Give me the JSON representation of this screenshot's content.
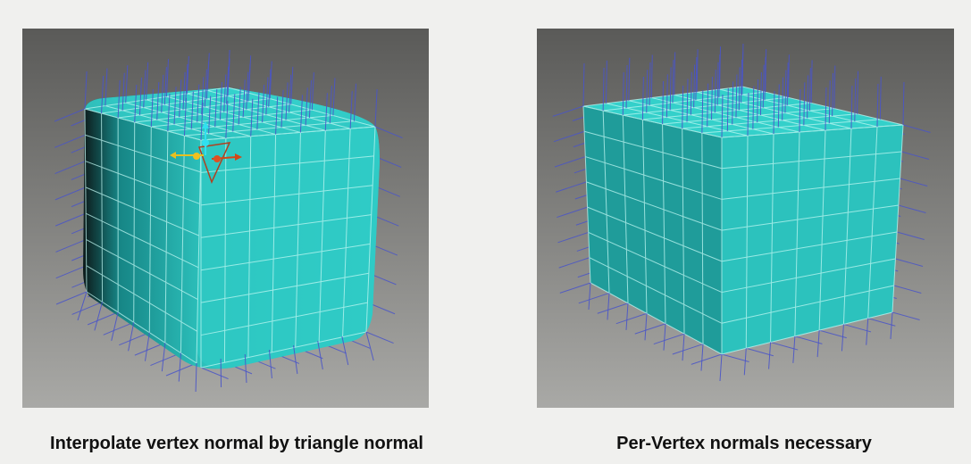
{
  "slide": {
    "left_panel": {
      "caption": "Interpolate vertex normal by triangle normal"
    },
    "right_panel": {
      "caption": "Per-Vertex normals necessary"
    }
  },
  "colors": {
    "background": "#f0f0ee",
    "viewport_top": "#5f5f5d",
    "viewport_bottom": "#a7a7a4",
    "cube_teal": "#2ec4c0",
    "cube_teal_dark": "#1a8f8e",
    "wire": "#bff7f2",
    "normal_line": "#4a55c8",
    "gizmo_red": "#c04020",
    "gizmo_yellow": "#e8c020",
    "gizmo_cyan": "#30e0f0"
  }
}
